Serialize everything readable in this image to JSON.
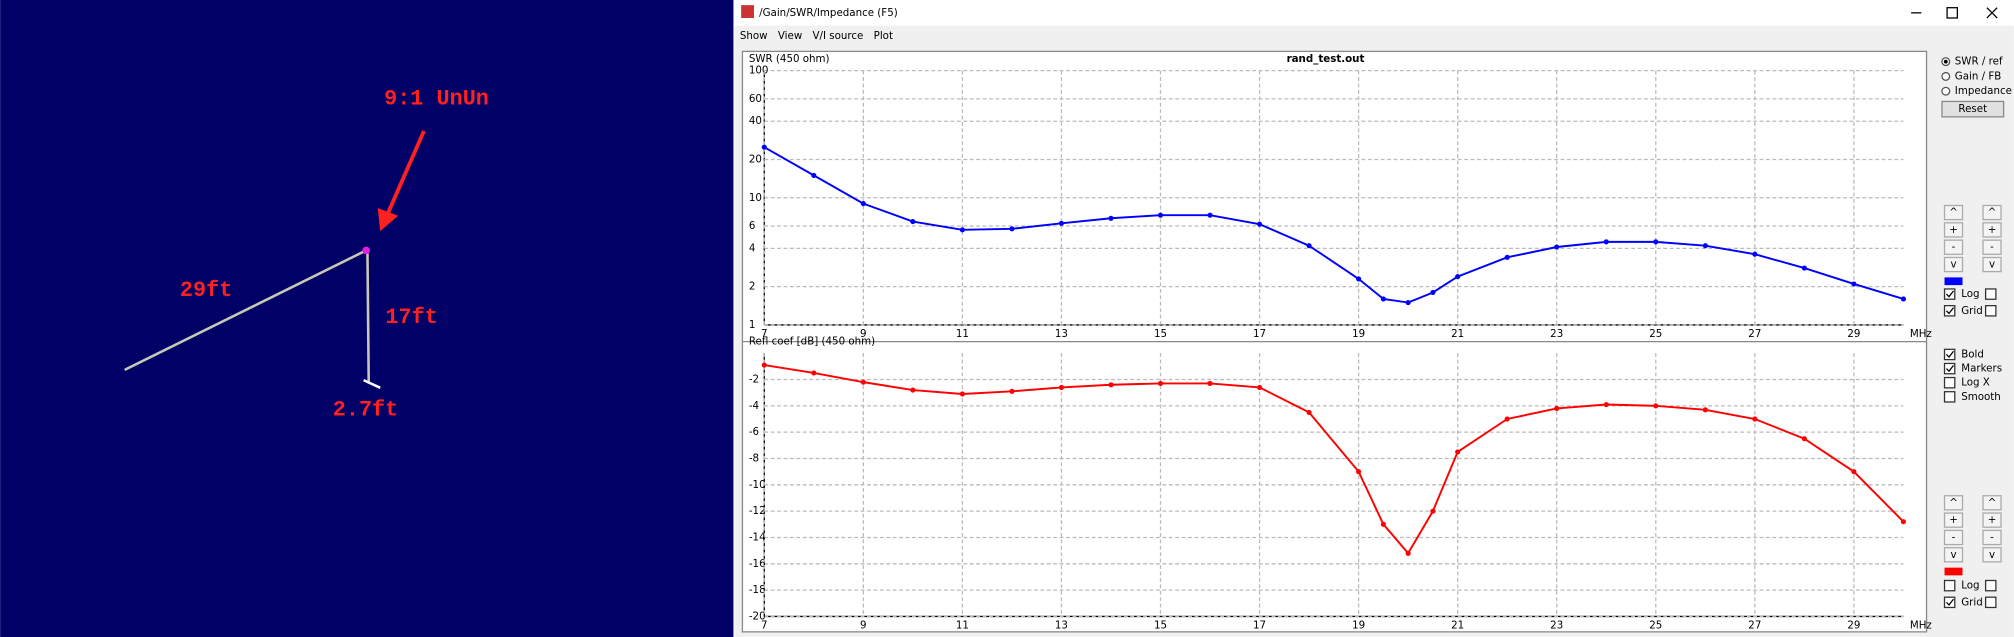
{
  "diagram": {
    "labels": {
      "unun": "9:1 UnUn",
      "wire": "29ft",
      "vertical": "17ft",
      "ground": "2.7ft"
    }
  },
  "window": {
    "title": "/Gain/SWR/Impedance (F5)",
    "menu": [
      "Show",
      "View",
      "V/I source",
      "Plot"
    ],
    "controls": {
      "plot_mode": [
        {
          "label": "SWR / ref",
          "selected": true
        },
        {
          "label": "Gain / FB",
          "selected": false
        },
        {
          "label": "Impedance",
          "selected": false
        }
      ],
      "reset": "Reset",
      "spin_buttons": [
        "^",
        "+",
        "-",
        "v"
      ],
      "top": [
        {
          "label": "Log",
          "checked": true
        },
        {
          "label": "Grid",
          "checked": true
        }
      ],
      "options": [
        {
          "label": "Bold",
          "checked": true
        },
        {
          "label": "Markers",
          "checked": true
        },
        {
          "label": "Log X",
          "checked": false
        },
        {
          "label": "Smooth",
          "checked": false
        }
      ],
      "bottom": [
        {
          "label": "Log",
          "checked": false
        },
        {
          "label": "Grid",
          "checked": true
        }
      ]
    }
  },
  "chart_data": [
    {
      "type": "line",
      "title": "rand_test.out",
      "y_label": "SWR (450 ohm)",
      "x_unit": "MHz",
      "log_y": true,
      "grid": true,
      "color": "#0000ff",
      "x": [
        7,
        8,
        9,
        10,
        11,
        12,
        13,
        14,
        15,
        16,
        17,
        18,
        19,
        19.5,
        20,
        20.5,
        21,
        22,
        23,
        24,
        25,
        26,
        27,
        28,
        29,
        30
      ],
      "values": [
        25,
        15,
        9,
        6.5,
        5.6,
        5.7,
        6.3,
        6.9,
        7.3,
        7.3,
        6.2,
        4.2,
        2.3,
        1.6,
        1.5,
        1.8,
        2.4,
        3.4,
        4.1,
        4.5,
        4.5,
        4.2,
        3.6,
        2.8,
        2.1,
        1.6
      ],
      "xlim": [
        7,
        30
      ],
      "xticks": [
        7,
        9,
        11,
        13,
        15,
        17,
        19,
        21,
        23,
        25,
        27,
        29
      ],
      "ylim": [
        1,
        100
      ],
      "yticks": [
        1,
        2,
        4,
        6,
        10,
        20,
        40,
        60,
        100
      ]
    },
    {
      "type": "line",
      "y_label": "Refl coef [dB] (450 ohm)",
      "x_unit": "MHz",
      "log_y": false,
      "grid": true,
      "color": "#ff0000",
      "x": [
        7,
        8,
        9,
        10,
        11,
        12,
        13,
        14,
        15,
        16,
        17,
        18,
        19,
        19.5,
        20,
        20.5,
        21,
        22,
        23,
        24,
        25,
        26,
        27,
        28,
        29,
        30
      ],
      "values": [
        -0.9,
        -1.5,
        -2.2,
        -2.8,
        -3.1,
        -2.9,
        -2.6,
        -2.4,
        -2.3,
        -2.3,
        -2.6,
        -4.5,
        -9,
        -13,
        -15.2,
        -12,
        -7.5,
        -5,
        -4.2,
        -3.9,
        -4,
        -4.3,
        -5,
        -6.5,
        -9,
        -12.8
      ],
      "xlim": [
        7,
        30
      ],
      "xticks": [
        7,
        9,
        11,
        13,
        15,
        17,
        19,
        21,
        23,
        25,
        27,
        29
      ],
      "ylim": [
        -20,
        0
      ],
      "yticks": [
        -20,
        -18,
        -16,
        -14,
        -12,
        -10,
        -8,
        -6,
        -4,
        -2
      ]
    }
  ]
}
